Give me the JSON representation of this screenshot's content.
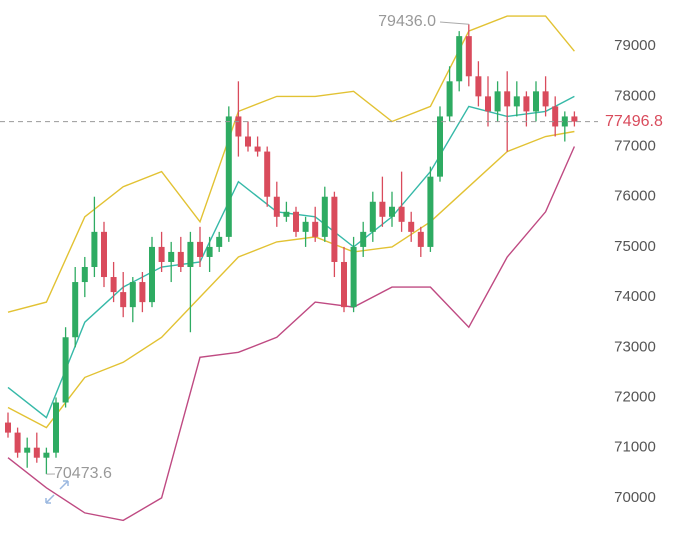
{
  "chart_data": {
    "type": "candlestick",
    "up_color": "#2eab62",
    "down_color": "#d94b5c",
    "open": [
      71500,
      71300,
      70900,
      71000,
      70800,
      70900,
      71900,
      73200,
      74300,
      74600,
      75300,
      74400,
      74100,
      73800,
      74300,
      73900,
      75000,
      74700,
      74900,
      74600,
      75100,
      74800,
      75000,
      75200,
      77600,
      77200,
      77000,
      76900,
      76000,
      75600,
      75700,
      75300,
      75500,
      75200,
      76000,
      74700,
      73800,
      75000,
      75300,
      75900,
      75600,
      75800,
      75500,
      75300,
      75000,
      76400,
      77600,
      78300,
      79200,
      78400,
      78000,
      77700,
      78100,
      77800,
      78000,
      77700,
      78100,
      77800,
      77400,
      77600
    ],
    "high": [
      71700,
      71400,
      71200,
      71300,
      71000,
      72000,
      73400,
      74600,
      74800,
      76000,
      75500,
      74700,
      74500,
      74400,
      74500,
      75200,
      75300,
      75100,
      75200,
      75300,
      75400,
      75200,
      75300,
      77800,
      78300,
      77500,
      77200,
      77000,
      76300,
      75900,
      75800,
      75600,
      75800,
      76200,
      76100,
      75000,
      75200,
      75500,
      76100,
      76400,
      76100,
      76500,
      75700,
      75400,
      76600,
      77800,
      78600,
      79300,
      79436,
      78700,
      78400,
      78300,
      78500,
      78300,
      78100,
      78300,
      78400,
      78000,
      77700,
      77700
    ],
    "low": [
      71200,
      70800,
      70600,
      70700,
      70473.6,
      70800,
      71800,
      73000,
      74000,
      74400,
      74200,
      73900,
      73600,
      73500,
      73700,
      73800,
      74500,
      74300,
      74500,
      73300,
      74600,
      74500,
      74900,
      75100,
      76800,
      76900,
      76800,
      75800,
      75400,
      75500,
      75200,
      75000,
      75100,
      75100,
      74400,
      73700,
      73700,
      74800,
      75100,
      75400,
      75400,
      75300,
      75100,
      74800,
      74900,
      76300,
      77500,
      78100,
      78200,
      77800,
      77400,
      77500,
      76900,
      77600,
      77400,
      77500,
      77600,
      77200,
      77100,
      77400
    ],
    "close": [
      71300,
      70900,
      71000,
      70800,
      70900,
      71900,
      73200,
      74300,
      74600,
      75300,
      74400,
      74100,
      73800,
      74300,
      73900,
      75000,
      74700,
      74900,
      74600,
      75100,
      74800,
      75000,
      75200,
      77600,
      77200,
      77000,
      76900,
      76000,
      75600,
      75700,
      75300,
      75500,
      75200,
      76000,
      74700,
      73800,
      75000,
      75300,
      75900,
      75600,
      75800,
      75500,
      75300,
      75000,
      76400,
      77600,
      78300,
      79200,
      78400,
      78000,
      77700,
      78100,
      77800,
      78000,
      77700,
      78100,
      77800,
      77400,
      77600,
      77496.8
    ],
    "series": [
      {
        "name": "upper",
        "color": "#e2c233",
        "x": [
          0,
          4,
          8,
          12,
          16,
          20,
          24,
          28,
          32,
          36,
          40,
          44,
          48,
          52,
          56,
          59
        ],
        "values": [
          73700,
          73900,
          75600,
          76200,
          76500,
          75500,
          77700,
          78000,
          78000,
          78100,
          77500,
          77800,
          79300,
          79600,
          79600,
          78900
        ]
      },
      {
        "name": "lower",
        "color": "#bf4a82",
        "x": [
          0,
          4,
          8,
          12,
          16,
          20,
          24,
          28,
          32,
          36,
          40,
          44,
          48,
          52,
          56,
          59
        ],
        "values": [
          70800,
          70200,
          69700,
          69550,
          70000,
          72800,
          72900,
          73200,
          73900,
          73800,
          74200,
          74200,
          73400,
          74800,
          75700,
          77000
        ]
      },
      {
        "name": "mid",
        "color": "#e2c233",
        "x": [
          0,
          4,
          8,
          12,
          16,
          20,
          24,
          28,
          32,
          36,
          40,
          44,
          48,
          52,
          56,
          59
        ],
        "values": [
          71800,
          71400,
          72400,
          72700,
          73200,
          74000,
          74800,
          75100,
          75200,
          74900,
          75000,
          75500,
          76200,
          76900,
          77200,
          77300
        ]
      },
      {
        "name": "ma",
        "color": "#36b9a8",
        "x": [
          0,
          4,
          8,
          12,
          16,
          20,
          24,
          28,
          32,
          36,
          40,
          44,
          48,
          52,
          56,
          59
        ],
        "values": [
          72200,
          71600,
          73500,
          74200,
          74600,
          74700,
          76300,
          75700,
          75600,
          75000,
          75600,
          76500,
          77800,
          77600,
          77700,
          78000
        ]
      }
    ],
    "ylim": [
      69220,
      79920
    ],
    "yticks": [
      70000,
      71000,
      72000,
      73000,
      74000,
      75000,
      76000,
      77000,
      78000,
      79000
    ],
    "last_price": 77496.8,
    "max_marker": {
      "value": 79436,
      "label": "79436.0"
    },
    "min_marker": 70473.6
  }
}
